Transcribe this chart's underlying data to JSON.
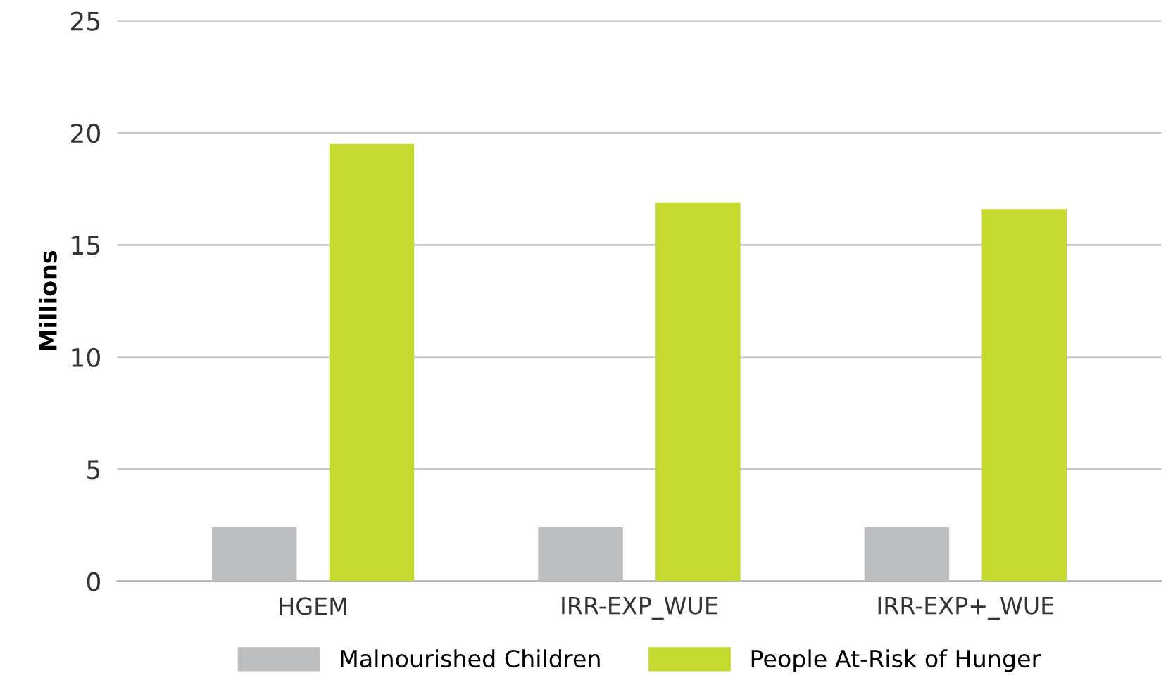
{
  "chart_data": {
    "type": "bar",
    "ylabel": "Millions",
    "categories": [
      "HGEM",
      "IRR-EXP_WUE",
      "IRR-EXP+_WUE"
    ],
    "series": [
      {
        "name": "Malnourished Children",
        "color": "#bdbebf",
        "values": [
          2.4,
          2.4,
          2.4
        ]
      },
      {
        "name": "People At-Risk of Hunger",
        "color": "#c6d92e",
        "values": [
          19.5,
          16.9,
          16.6
        ]
      }
    ],
    "ylim": [
      0,
      25
    ],
    "yticks": [
      0,
      5,
      10,
      15,
      20,
      25
    ],
    "grid": "y",
    "legend": "bottom"
  }
}
